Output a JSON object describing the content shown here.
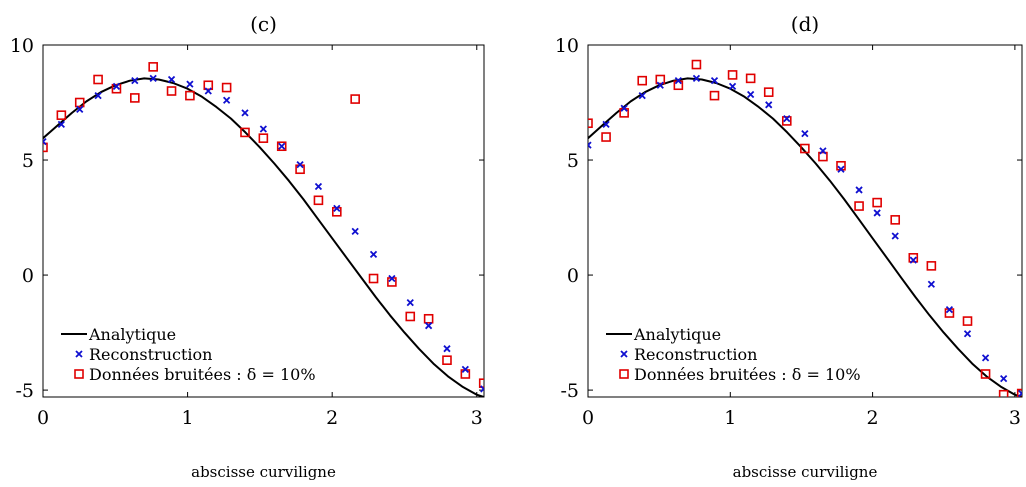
{
  "chart_data": [
    {
      "type": "scatter",
      "title": "(c)",
      "xlabel": "abscisse curviligne",
      "ylabel": "",
      "xlim": [
        0,
        3.05
      ],
      "ylim": [
        -5.3,
        10
      ],
      "xticks": [
        "0",
        "1",
        "2",
        "3"
      ],
      "yticks": [
        "10",
        "5",
        "0",
        "-5"
      ],
      "grid": false,
      "legend_position": "bottom-left",
      "legend": [
        "Analytique",
        "Reconstruction",
        "Données bruitées : δ = 10%"
      ],
      "analytic_curve": {
        "x": [
          0,
          0.1,
          0.2,
          0.3,
          0.4,
          0.5,
          0.6,
          0.7,
          0.8,
          0.9,
          1.0,
          1.1,
          1.2,
          1.3,
          1.4,
          1.5,
          1.6,
          1.7,
          1.8,
          1.9,
          2.0,
          2.1,
          2.2,
          2.3,
          2.4,
          2.5,
          2.6,
          2.7,
          2.8,
          2.9,
          3.0,
          3.05
        ],
        "y": [
          5.95,
          6.5,
          7.05,
          7.55,
          7.95,
          8.25,
          8.45,
          8.55,
          8.5,
          8.35,
          8.1,
          7.75,
          7.3,
          6.8,
          6.2,
          5.55,
          4.85,
          4.1,
          3.3,
          2.45,
          1.6,
          0.75,
          -0.1,
          -0.95,
          -1.75,
          -2.5,
          -3.2,
          -3.85,
          -4.4,
          -4.85,
          -5.2,
          -5.3
        ]
      },
      "reconstruction": {
        "x": [
          0.0,
          0.127,
          0.254,
          0.381,
          0.508,
          0.635,
          0.762,
          0.889,
          1.016,
          1.143,
          1.27,
          1.397,
          1.524,
          1.651,
          1.778,
          1.905,
          2.032,
          2.159,
          2.286,
          2.413,
          2.54,
          2.667,
          2.794,
          2.921,
          3.048
        ],
        "y": [
          5.8,
          6.55,
          7.2,
          7.8,
          8.2,
          8.45,
          8.55,
          8.5,
          8.3,
          8.0,
          7.6,
          7.05,
          6.35,
          5.6,
          4.8,
          3.85,
          2.9,
          1.9,
          0.9,
          -0.15,
          -1.2,
          -2.2,
          -3.2,
          -4.1,
          -4.95
        ]
      },
      "noisy_data": {
        "x": [
          0.0,
          0.127,
          0.254,
          0.381,
          0.508,
          0.635,
          0.762,
          0.889,
          1.016,
          1.143,
          1.27,
          1.397,
          1.524,
          1.651,
          1.778,
          1.905,
          2.032,
          2.159,
          2.286,
          2.413,
          2.54,
          2.667,
          2.794,
          2.921,
          3.048
        ],
        "y": [
          5.55,
          6.95,
          7.5,
          8.5,
          8.1,
          7.7,
          9.05,
          8.0,
          7.8,
          8.25,
          8.15,
          6.2,
          5.95,
          5.6,
          4.6,
          3.25,
          2.75,
          7.65,
          -0.15,
          -0.3,
          -1.8,
          -1.9,
          -3.7,
          -4.3,
          -4.7
        ]
      }
    },
    {
      "type": "scatter",
      "title": "(d)",
      "xlabel": "abscisse curviligne",
      "ylabel": "",
      "xlim": [
        0,
        3.05
      ],
      "ylim": [
        -5.3,
        10
      ],
      "xticks": [
        "0",
        "1",
        "2",
        "3"
      ],
      "yticks": [
        "10",
        "5",
        "0",
        "-5"
      ],
      "grid": false,
      "legend_position": "bottom-left",
      "legend": [
        "Analytique",
        "Reconstruction",
        "Données bruitées : δ = 10%"
      ],
      "analytic_curve": {
        "x": [
          0,
          0.1,
          0.2,
          0.3,
          0.4,
          0.5,
          0.6,
          0.7,
          0.8,
          0.9,
          1.0,
          1.1,
          1.2,
          1.3,
          1.4,
          1.5,
          1.6,
          1.7,
          1.8,
          1.9,
          2.0,
          2.1,
          2.2,
          2.3,
          2.4,
          2.5,
          2.6,
          2.7,
          2.8,
          2.9,
          3.0,
          3.05
        ],
        "y": [
          5.95,
          6.5,
          7.05,
          7.55,
          7.95,
          8.25,
          8.45,
          8.55,
          8.5,
          8.35,
          8.1,
          7.75,
          7.3,
          6.8,
          6.2,
          5.55,
          4.85,
          4.1,
          3.3,
          2.45,
          1.6,
          0.75,
          -0.1,
          -0.95,
          -1.75,
          -2.5,
          -3.2,
          -3.85,
          -4.4,
          -4.85,
          -5.2,
          -5.3
        ]
      },
      "reconstruction": {
        "x": [
          0.0,
          0.127,
          0.254,
          0.381,
          0.508,
          0.635,
          0.762,
          0.889,
          1.016,
          1.143,
          1.27,
          1.397,
          1.524,
          1.651,
          1.778,
          1.905,
          2.032,
          2.159,
          2.286,
          2.413,
          2.54,
          2.667,
          2.794,
          2.921,
          3.048
        ],
        "y": [
          5.65,
          6.55,
          7.25,
          7.8,
          8.25,
          8.45,
          8.55,
          8.45,
          8.2,
          7.85,
          7.4,
          6.8,
          6.15,
          5.4,
          4.6,
          3.7,
          2.7,
          1.7,
          0.65,
          -0.4,
          -1.5,
          -2.55,
          -3.6,
          -4.5,
          -5.15
        ]
      },
      "noisy_data": {
        "x": [
          0.0,
          0.127,
          0.254,
          0.381,
          0.508,
          0.635,
          0.762,
          0.889,
          1.016,
          1.143,
          1.27,
          1.397,
          1.524,
          1.651,
          1.778,
          1.905,
          2.032,
          2.159,
          2.286,
          2.413,
          2.54,
          2.667,
          2.794,
          2.921,
          3.048
        ],
        "y": [
          6.6,
          6.0,
          7.05,
          8.45,
          8.5,
          8.25,
          9.15,
          7.8,
          8.7,
          8.55,
          7.95,
          6.7,
          5.5,
          5.15,
          4.75,
          3.0,
          3.15,
          2.4,
          0.75,
          0.4,
          -1.65,
          -2.0,
          -4.3,
          -5.2,
          -5.15
        ]
      }
    }
  ]
}
